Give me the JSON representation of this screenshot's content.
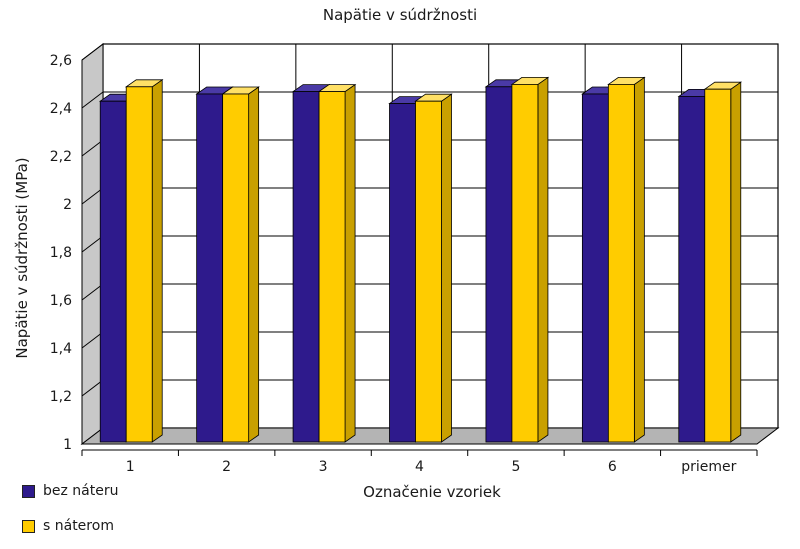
{
  "chart_data": {
    "type": "bar",
    "title": "Napätie v súdržnosti",
    "xlabel": "Označenie vzoriek",
    "ylabel": "Napätie v súdržnosti (MPa)",
    "ylim": [
      1,
      2.6
    ],
    "yticks": [
      "1",
      "1,2",
      "1,4",
      "1,6",
      "1,8",
      "2",
      "2,2",
      "2,4",
      "2,6"
    ],
    "categories": [
      "1",
      "2",
      "3",
      "4",
      "5",
      "6",
      "priemer"
    ],
    "grid": true,
    "legend_position": "bottom-left",
    "series": [
      {
        "name": "bez náteru",
        "color": "#2e1a8c",
        "values": [
          2.42,
          2.45,
          2.46,
          2.41,
          2.48,
          2.45,
          2.44
        ]
      },
      {
        "name": "s náterom",
        "color": "#ffcc00",
        "values": [
          2.48,
          2.45,
          2.46,
          2.42,
          2.49,
          2.49,
          2.47
        ]
      }
    ]
  }
}
